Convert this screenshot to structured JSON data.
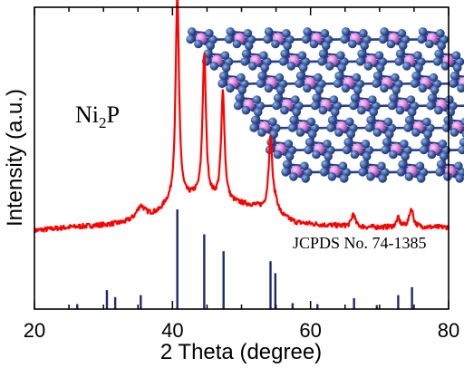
{
  "chart_data": {
    "type": "line",
    "xlabel": "2 Theta (degree)",
    "ylabel": "Intensity (a.u.)",
    "xlim": [
      20,
      80
    ],
    "x_ticks": [
      "20",
      "40",
      "60",
      "80"
    ],
    "annotations": {
      "compound_prefix": "Ni",
      "compound_sub": "2",
      "compound_suffix": "P",
      "reference": "JCPDS No. 74-1385"
    },
    "series_color": "#ff0000",
    "reference_color": "#1f2a6b",
    "pattern": {
      "baseline": [
        [
          20,
          0.19
        ],
        [
          25,
          0.205
        ],
        [
          30,
          0.215
        ],
        [
          33,
          0.225
        ],
        [
          38,
          0.27
        ],
        [
          39,
          0.3
        ],
        [
          43,
          0.34
        ],
        [
          50,
          0.31
        ],
        [
          52,
          0.3
        ],
        [
          58,
          0.225
        ],
        [
          62,
          0.215
        ],
        [
          68,
          0.205
        ],
        [
          75,
          0.205
        ],
        [
          80,
          0.205
        ]
      ],
      "peaks": [
        {
          "x": 35.4,
          "h": 0.055,
          "w": 0.7
        },
        {
          "x": 40.7,
          "h": 0.95,
          "w": 0.3
        },
        {
          "x": 44.6,
          "h": 0.66,
          "w": 0.3
        },
        {
          "x": 47.3,
          "h": 0.5,
          "w": 0.3
        },
        {
          "x": 54.2,
          "h": 0.34,
          "w": 0.33
        },
        {
          "x": 55.0,
          "h": 0.04,
          "w": 0.35
        },
        {
          "x": 66.2,
          "h": 0.06,
          "w": 0.3
        },
        {
          "x": 72.7,
          "h": 0.04,
          "w": 0.3
        },
        {
          "x": 74.6,
          "h": 0.085,
          "w": 0.35
        }
      ]
    },
    "reference_lines": [
      {
        "x": 26.2,
        "h": 0.05
      },
      {
        "x": 30.5,
        "h": 0.19
      },
      {
        "x": 31.7,
        "h": 0.12
      },
      {
        "x": 35.4,
        "h": 0.14
      },
      {
        "x": 40.7,
        "h": 1.0
      },
      {
        "x": 44.6,
        "h": 0.75
      },
      {
        "x": 47.4,
        "h": 0.58
      },
      {
        "x": 54.2,
        "h": 0.48
      },
      {
        "x": 54.9,
        "h": 0.36
      },
      {
        "x": 57.4,
        "h": 0.06
      },
      {
        "x": 61.0,
        "h": 0.05
      },
      {
        "x": 66.3,
        "h": 0.11
      },
      {
        "x": 69.6,
        "h": 0.04
      },
      {
        "x": 72.7,
        "h": 0.14
      },
      {
        "x": 74.7,
        "h": 0.22
      }
    ],
    "inset": {
      "type": "crystal-structure",
      "bond_color": "#2a3e86",
      "ni_color": "#4064a8",
      "p_color": "#e08ae0"
    }
  }
}
